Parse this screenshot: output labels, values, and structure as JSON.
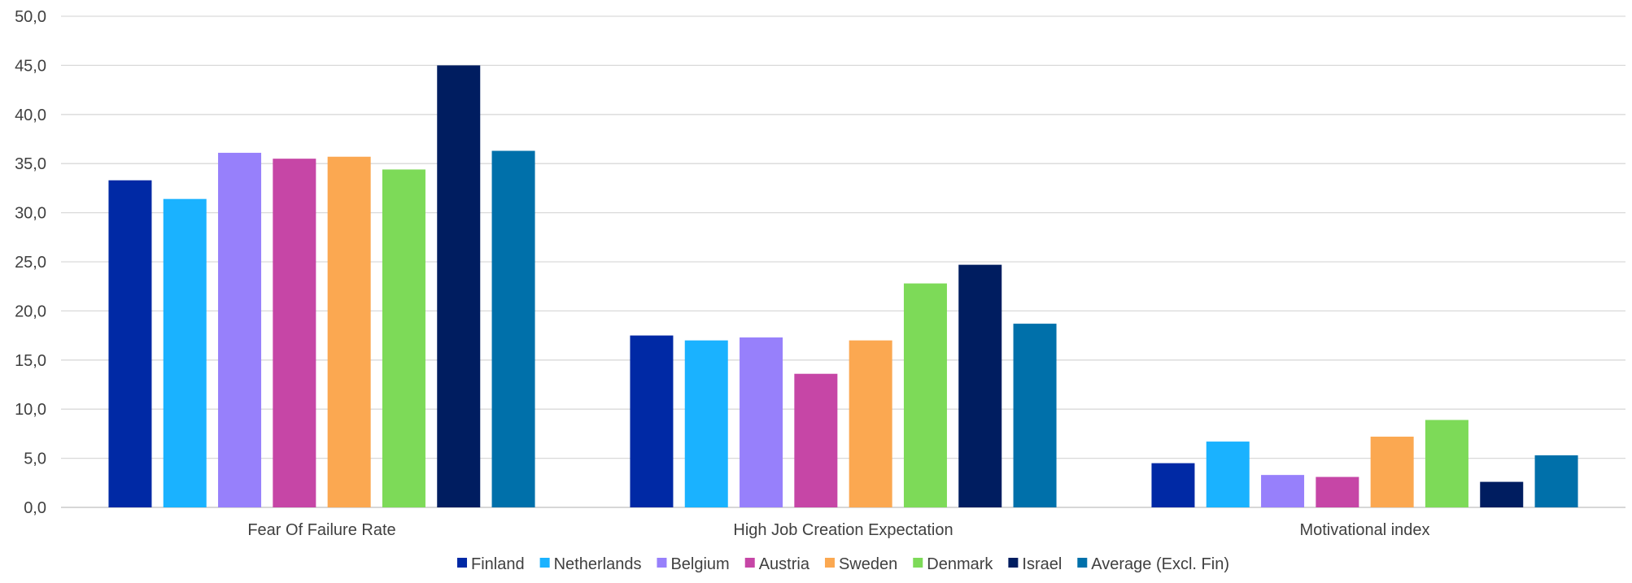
{
  "chart_data": {
    "type": "bar",
    "title": "",
    "xlabel": "",
    "ylabel": "",
    "ylim": [
      0,
      50
    ],
    "ytick_step": 5,
    "ytick_labels": [
      "0,0",
      "5,0",
      "10,0",
      "15,0",
      "20,0",
      "25,0",
      "30,0",
      "35,0",
      "40,0",
      "45,0",
      "50,0"
    ],
    "grid": true,
    "legend_position": "bottom",
    "categories": [
      "Fear Of Failure Rate",
      "High Job Creation Expectation",
      "Motivational index"
    ],
    "series": [
      {
        "name": "Finland",
        "color": "#0029A5",
        "values": [
          33.3,
          17.5,
          4.5
        ]
      },
      {
        "name": "Netherlands",
        "color": "#1AB2FF",
        "values": [
          31.4,
          17.0,
          6.7
        ]
      },
      {
        "name": "Belgium",
        "color": "#9780FB",
        "values": [
          36.1,
          17.3,
          3.3
        ]
      },
      {
        "name": "Austria",
        "color": "#C646A6",
        "values": [
          35.5,
          13.6,
          3.1
        ]
      },
      {
        "name": "Sweden",
        "color": "#FBA851",
        "values": [
          35.7,
          17.0,
          7.2
        ]
      },
      {
        "name": "Denmark",
        "color": "#7DDA58",
        "values": [
          34.4,
          22.8,
          8.9
        ]
      },
      {
        "name": "Israel",
        "color": "#001D60",
        "values": [
          45.0,
          24.7,
          2.6
        ]
      },
      {
        "name": "Average (Excl. Fin)",
        "color": "#0070AA",
        "values": [
          36.3,
          18.7,
          5.3
        ]
      }
    ]
  }
}
